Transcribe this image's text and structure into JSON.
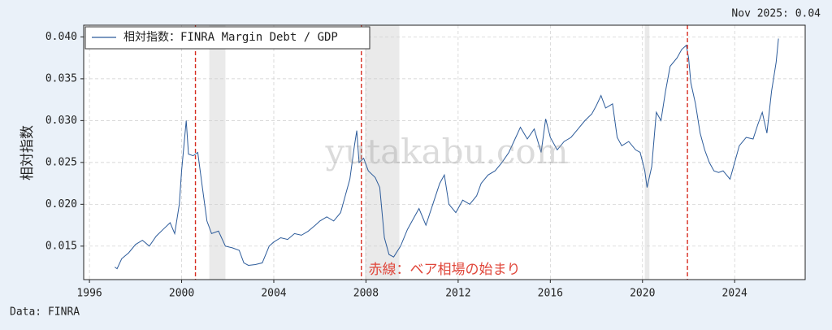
{
  "chart_data": {
    "type": "line",
    "annotation_top": "Nov 2025: 0.04",
    "source": "Data: FINRA",
    "note": "赤線：ベア相場の始まり",
    "watermark": "yutakabu.com",
    "ylabel": "相対指数",
    "legend": "upper left",
    "grid": true,
    "xlim": [
      1995.75,
      2027.06
    ],
    "xticks": [
      1996,
      2000,
      2004,
      2008,
      2012,
      2016,
      2020,
      2024
    ],
    "ylim": [
      0.011,
      0.0414
    ],
    "yticks": [
      {
        "value": 0.015,
        "label": "0.015"
      },
      {
        "value": 0.02,
        "label": "0.020"
      },
      {
        "value": 0.025,
        "label": "0.025"
      },
      {
        "value": 0.03,
        "label": "0.030"
      },
      {
        "value": 0.035,
        "label": "0.035"
      },
      {
        "value": 0.04,
        "label": "0.040"
      }
    ],
    "recessions": [
      [
        2001.2,
        2001.9
      ],
      [
        2007.95,
        2009.45
      ],
      [
        2020.1,
        2020.3
      ]
    ],
    "bear_markets": [
      2000.6,
      2007.8,
      2021.95
    ],
    "x": [
      1997.1,
      1997.2,
      1997.4,
      1997.7,
      1998.0,
      1998.3,
      1998.6,
      1998.9,
      1999.2,
      1999.5,
      1999.7,
      1999.9,
      2000.0,
      2000.2,
      2000.3,
      2000.5,
      2000.7,
      2000.9,
      2001.1,
      2001.3,
      2001.6,
      2001.9,
      2002.2,
      2002.5,
      2002.7,
      2002.9,
      2003.2,
      2003.5,
      2003.8,
      2004.0,
      2004.3,
      2004.6,
      2004.9,
      2005.2,
      2005.5,
      2005.8,
      2006.0,
      2006.3,
      2006.6,
      2006.9,
      2007.1,
      2007.3,
      2007.5,
      2007.6,
      2007.7,
      2007.9,
      2008.1,
      2008.4,
      2008.6,
      2008.8,
      2009.0,
      2009.2,
      2009.5,
      2009.8,
      2010.0,
      2010.3,
      2010.6,
      2010.9,
      2011.2,
      2011.4,
      2011.6,
      2011.9,
      2012.2,
      2012.5,
      2012.8,
      2013.0,
      2013.3,
      2013.6,
      2013.9,
      2014.2,
      2014.5,
      2014.7,
      2015.0,
      2015.3,
      2015.6,
      2015.8,
      2016.0,
      2016.3,
      2016.6,
      2016.9,
      2017.2,
      2017.5,
      2017.8,
      2018.0,
      2018.2,
      2018.4,
      2018.7,
      2018.9,
      2019.1,
      2019.4,
      2019.7,
      2019.9,
      2020.1,
      2020.2,
      2020.4,
      2020.6,
      2020.8,
      2021.0,
      2021.2,
      2021.5,
      2021.7,
      2021.9,
      2022.0,
      2022.1,
      2022.3,
      2022.5,
      2022.7,
      2022.9,
      2023.1,
      2023.3,
      2023.5,
      2023.8,
      2024.0,
      2024.2,
      2024.5,
      2024.8,
      2025.0,
      2025.2,
      2025.4,
      2025.6,
      2025.8,
      2025.9
    ],
    "series": [
      {
        "name": "相対指数：FINRA Margin Debt / GDP",
        "color": "#2c5b9a",
        "values": [
          0.0125,
          0.0123,
          0.0135,
          0.0142,
          0.0152,
          0.0157,
          0.015,
          0.0162,
          0.017,
          0.0178,
          0.0165,
          0.02,
          0.024,
          0.03,
          0.026,
          0.0258,
          0.0262,
          0.022,
          0.018,
          0.0165,
          0.0168,
          0.015,
          0.0148,
          0.0145,
          0.013,
          0.0127,
          0.0128,
          0.013,
          0.015,
          0.0155,
          0.016,
          0.0158,
          0.0165,
          0.0163,
          0.0168,
          0.0175,
          0.018,
          0.0185,
          0.018,
          0.019,
          0.021,
          0.023,
          0.027,
          0.0288,
          0.025,
          0.0255,
          0.024,
          0.0232,
          0.022,
          0.016,
          0.014,
          0.0137,
          0.015,
          0.017,
          0.018,
          0.0195,
          0.0175,
          0.02,
          0.0225,
          0.0235,
          0.02,
          0.019,
          0.0205,
          0.02,
          0.021,
          0.0225,
          0.0235,
          0.024,
          0.025,
          0.0262,
          0.028,
          0.0292,
          0.0278,
          0.029,
          0.0262,
          0.0302,
          0.028,
          0.0265,
          0.0275,
          0.028,
          0.029,
          0.03,
          0.0308,
          0.0318,
          0.033,
          0.0315,
          0.032,
          0.028,
          0.027,
          0.0275,
          0.0265,
          0.0262,
          0.024,
          0.022,
          0.0245,
          0.031,
          0.03,
          0.0335,
          0.0365,
          0.0375,
          0.0385,
          0.039,
          0.0375,
          0.0345,
          0.032,
          0.0285,
          0.0265,
          0.025,
          0.024,
          0.0238,
          0.024,
          0.023,
          0.025,
          0.027,
          0.028,
          0.0278,
          0.0295,
          0.031,
          0.0285,
          0.0335,
          0.037,
          0.0398
        ]
      }
    ]
  }
}
